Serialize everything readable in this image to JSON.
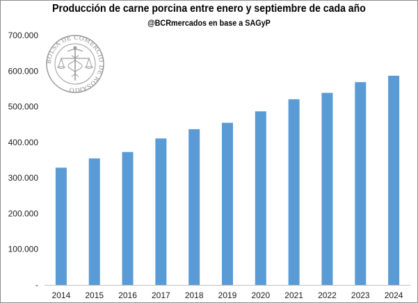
{
  "chart_data": {
    "type": "bar",
    "title": "Producción de carne porcina entre enero y septiembre de cada año",
    "subtitle": "@BCRmercados en base a SAGyP",
    "categories": [
      "2014",
      "2015",
      "2016",
      "2017",
      "2018",
      "2019",
      "2020",
      "2021",
      "2022",
      "2023",
      "2024"
    ],
    "values": [
      329000,
      355000,
      373000,
      411000,
      437000,
      455000,
      487000,
      521000,
      539000,
      569000,
      587000
    ],
    "ylim": [
      0,
      700000
    ],
    "yticks": [
      0,
      100000,
      200000,
      300000,
      400000,
      500000,
      600000,
      700000
    ],
    "ytick_labels": [
      "-",
      "100.000",
      "200.000",
      "300.000",
      "400.000",
      "500.000",
      "600.000",
      "700.000"
    ],
    "bar_color": "#5b9bd5",
    "grid": false,
    "legend": "none"
  },
  "watermark": {
    "text": "BOLSA DE COMERCIO DE ROSARIO"
  }
}
